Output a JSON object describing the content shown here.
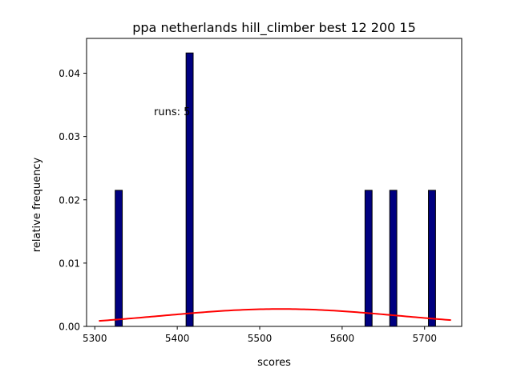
{
  "chart_data": {
    "type": "bar",
    "title": "ppa netherlands hill_climber best 12 200 15",
    "xlabel": "scores",
    "ylabel": "relative frequency",
    "xlim": [
      5290,
      5745
    ],
    "ylim": [
      0,
      0.0455
    ],
    "xticks": [
      5300,
      5400,
      5500,
      5600,
      5700
    ],
    "yticks": [
      0.0,
      0.01,
      0.02,
      0.03,
      0.04
    ],
    "ytick_labels": [
      "0.00",
      "0.01",
      "0.02",
      "0.03",
      "0.04"
    ],
    "annotation": "runs: 5",
    "bar_width": 8.6,
    "bars": [
      {
        "x": 5329,
        "value": 0.0215
      },
      {
        "x": 5415,
        "value": 0.0432
      },
      {
        "x": 5632,
        "value": 0.0215
      },
      {
        "x": 5662,
        "value": 0.0215
      },
      {
        "x": 5709,
        "value": 0.0215
      }
    ],
    "fit_curve": {
      "type": "normal",
      "mean": 5525,
      "std": 145,
      "x_range": [
        5305,
        5732
      ]
    },
    "bar_fill": "#000080",
    "bar_edge": "#000000",
    "curve_color": "#ff0000",
    "grid": false,
    "legend": "none"
  }
}
